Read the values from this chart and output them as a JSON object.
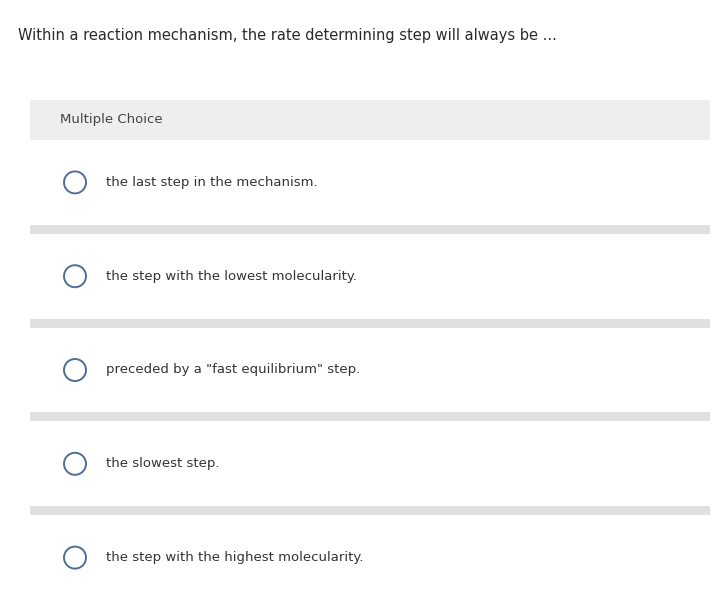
{
  "title": "Within a reaction mechanism, the rate determining step will always be ...",
  "section_label": "Multiple Choice",
  "choices": [
    "the last step in the mechanism.",
    "the step with the lowest molecularity.",
    "preceded by a \"fast equilibrium\" step.",
    "the slowest step.",
    "the step with the highest molecularity."
  ],
  "bg_color": "#ffffff",
  "section_bg_color": "#eeeeee",
  "choice_bg_color": "#ffffff",
  "sep_color": "#e0e0e0",
  "title_color": "#2a2a2a",
  "section_label_color": "#444444",
  "choice_text_color": "#333333",
  "circle_edge_color": "#4f6e96",
  "circle_face_color": "#ffffff",
  "title_fontsize": 10.5,
  "section_label_fontsize": 9.5,
  "choice_fontsize": 9.5,
  "fig_width": 7.2,
  "fig_height": 6.0,
  "dpi": 100
}
